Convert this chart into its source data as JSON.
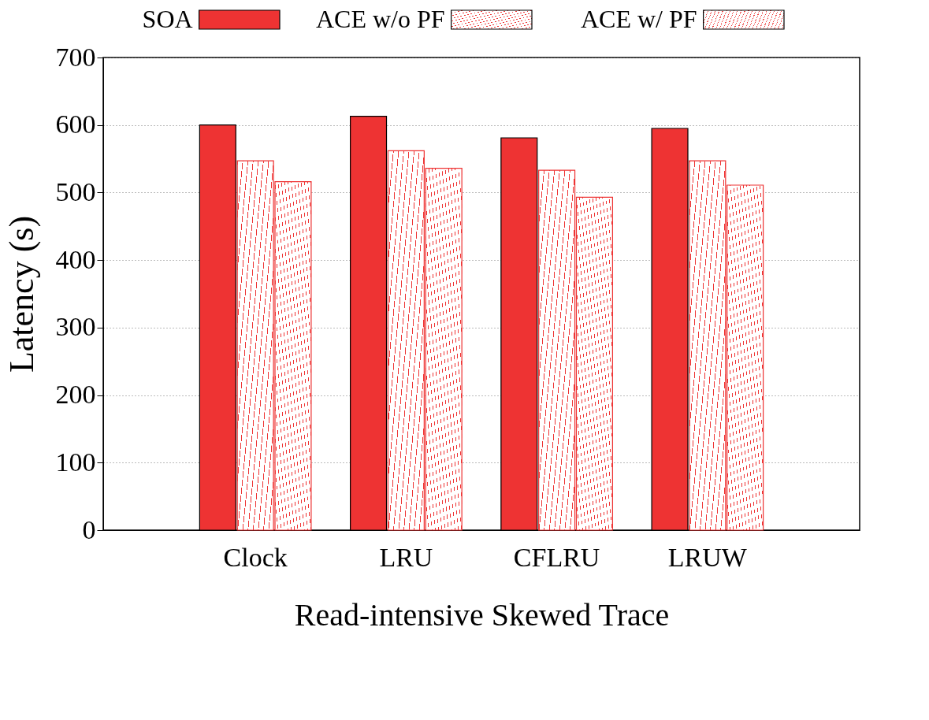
{
  "chart_data": {
    "type": "bar",
    "xlabel": "Read-intensive Skewed Trace",
    "ylabel": "Latency (s)",
    "categories": [
      "Clock",
      "LRU",
      "CFLRU",
      "LRUW"
    ],
    "series": [
      {
        "name": "SOA",
        "color": "#ee3333",
        "values": [
          600,
          613,
          581,
          595
        ]
      },
      {
        "name": "ACE w/o PF",
        "color": "#ee3333",
        "values": [
          547,
          562,
          533,
          547
        ]
      },
      {
        "name": "ACE w/ PF",
        "color": "#ee3333",
        "values": [
          516,
          536,
          493,
          511
        ]
      }
    ],
    "ylim": [
      0,
      700
    ],
    "yticks": [
      0,
      100,
      200,
      300,
      400,
      500,
      600,
      700
    ],
    "grid": "y",
    "legend": "top"
  }
}
